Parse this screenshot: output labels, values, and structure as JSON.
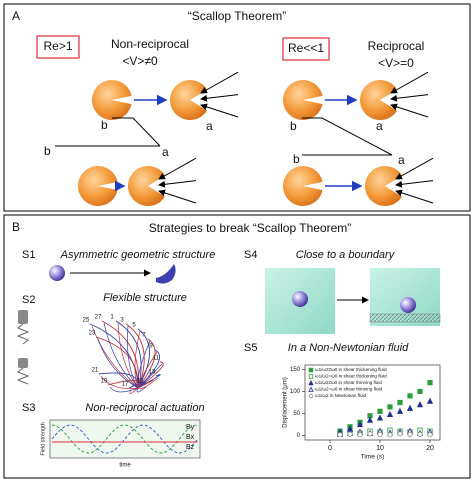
{
  "panel_a": {
    "label": "A",
    "title": "“Scallop Theorem”",
    "left": {
      "re": "Re>1",
      "kind": "Non-reciprocal",
      "velocity": "<V>≠0",
      "b_top": "b",
      "a_top": "a",
      "b_bottom": "b",
      "a_bottom": "a"
    },
    "right": {
      "re": "Re<<1",
      "kind": "Reciprocal",
      "velocity": "<V>=0",
      "b_top": "b",
      "a_top": "a",
      "b_bottom": "b",
      "a_bottom": "a"
    }
  },
  "panel_b": {
    "label": "B",
    "title": "Strategies to break “Scallop Theorem”",
    "s1": {
      "tag": "S1",
      "title": "Asymmetric geometric structure"
    },
    "s2": {
      "tag": "S2",
      "title": "Flexible structure",
      "frame_labels": [
        25,
        27,
        1,
        3,
        5,
        7,
        9,
        11,
        13,
        15,
        17,
        19,
        21,
        23
      ]
    },
    "s3": {
      "tag": "S3",
      "title": "Non-reciprocal actuation",
      "y_label": "Field strength",
      "x_label": "time",
      "fields": [
        {
          "name": "By",
          "color": "#2b55c8"
        },
        {
          "name": "Bx",
          "color": "#2a9d3a"
        },
        {
          "name": "Bz",
          "color": "#e0303a"
        }
      ]
    },
    "s4": {
      "tag": "S4",
      "title": "Close to a boundary"
    },
    "s5": {
      "tag": "S5",
      "title": "In a Non-Newtonian fluid",
      "plot": {
        "x_label": "Time (s)",
        "y_label": "Displacement (μm)",
        "xlim": [
          -5,
          22
        ],
        "ylim": [
          -10,
          160
        ],
        "xticks": [
          0,
          10,
          20
        ],
        "yticks": [
          0,
          50,
          100,
          150
        ],
        "x": [
          2,
          4,
          6,
          8,
          10,
          12,
          14,
          16,
          18,
          20
        ],
        "series": [
          {
            "name": "ω1/ω2≠ω0 in shear thickening fluid",
            "color": "#2a9d3a",
            "marker": "square",
            "filled": true,
            "values": [
              10,
              20,
              30,
              45,
              55,
              65,
              75,
              90,
              100,
              120
            ]
          },
          {
            "name": "ω1/ω2=ω0 in shear thickening fluid",
            "color": "#2a9d3a",
            "marker": "square",
            "filled": false,
            "values": [
              5,
              8,
              5,
              10,
              8,
              12,
              10,
              8,
              12,
              10
            ]
          },
          {
            "name": "ω1/ω2≠ω0 in shear thinning fluid",
            "color": "#1f2f8f",
            "marker": "triangle",
            "filled": true,
            "values": [
              8,
              15,
              25,
              35,
              40,
              48,
              55,
              62,
              70,
              78
            ]
          },
          {
            "name": "ω1/ω2=ω0 in shear thinning fluid",
            "color": "#1f2f8f",
            "marker": "triangle",
            "filled": false,
            "values": [
              3,
              5,
              8,
              5,
              10,
              6,
              8,
              10,
              5,
              8
            ]
          },
          {
            "name": "ω1/ω2 in Newtonian fluid",
            "color": "#888888",
            "marker": "circle",
            "filled": false,
            "values": [
              2,
              3,
              2,
              4,
              3,
              2,
              4,
              3,
              3,
              2
            ]
          }
        ]
      }
    }
  }
}
